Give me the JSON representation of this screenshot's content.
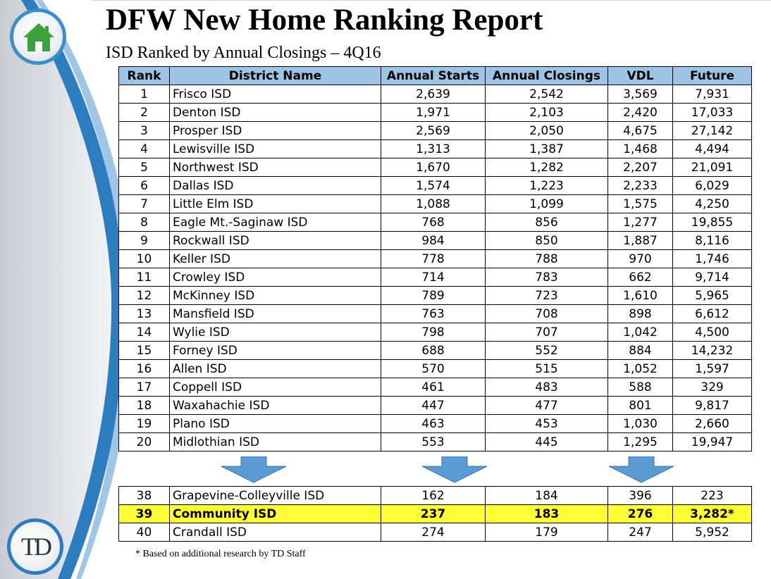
{
  "header": {
    "title": "DFW New Home Ranking Report",
    "subtitle": "ISD Ranked by Annual Closings – 4Q16"
  },
  "logo": {
    "bottom_text": "TD"
  },
  "icons": {
    "top": "house-icon",
    "bottom": "td-logo",
    "arrows": "down-arrow-icon"
  },
  "colors": {
    "header_fill": "#9dc3e6",
    "highlight_fill": "#ffff33",
    "accent_blue": "#2c7dc0",
    "house_green": "#3da13d"
  },
  "table": {
    "columns": [
      "Rank",
      "District Name",
      "Annual Starts",
      "Annual Closings",
      "VDL",
      "Future"
    ],
    "rows": [
      [
        "1",
        "Frisco ISD",
        "2,639",
        "2,542",
        "3,569",
        "7,931"
      ],
      [
        "2",
        "Denton ISD",
        "1,971",
        "2,103",
        "2,420",
        "17,033"
      ],
      [
        "3",
        "Prosper ISD",
        "2,569",
        "2,050",
        "4,675",
        "27,142"
      ],
      [
        "4",
        "Lewisville ISD",
        "1,313",
        "1,387",
        "1,468",
        "4,494"
      ],
      [
        "5",
        "Northwest ISD",
        "1,670",
        "1,282",
        "2,207",
        "21,091"
      ],
      [
        "6",
        "Dallas ISD",
        "1,574",
        "1,223",
        "2,233",
        "6,029"
      ],
      [
        "7",
        "Little Elm ISD",
        "1,088",
        "1,099",
        "1,575",
        "4,250"
      ],
      [
        "8",
        "Eagle Mt.-Saginaw ISD",
        "768",
        "856",
        "1,277",
        "19,855"
      ],
      [
        "9",
        "Rockwall ISD",
        "984",
        "850",
        "1,887",
        "8,116"
      ],
      [
        "10",
        "Keller ISD",
        "778",
        "788",
        "970",
        "1,746"
      ],
      [
        "11",
        "Crowley ISD",
        "714",
        "783",
        "662",
        "9,714"
      ],
      [
        "12",
        "McKinney ISD",
        "789",
        "723",
        "1,610",
        "5,965"
      ],
      [
        "13",
        "Mansfield ISD",
        "763",
        "708",
        "898",
        "6,612"
      ],
      [
        "14",
        "Wylie ISD",
        "798",
        "707",
        "1,042",
        "4,500"
      ],
      [
        "15",
        "Forney ISD",
        "688",
        "552",
        "884",
        "14,232"
      ],
      [
        "16",
        "Allen ISD",
        "570",
        "515",
        "1,052",
        "1,597"
      ],
      [
        "17",
        "Coppell ISD",
        "461",
        "483",
        "588",
        "329"
      ],
      [
        "18",
        "Waxahachie ISD",
        "447",
        "477",
        "801",
        "9,817"
      ],
      [
        "19",
        "Plano ISD",
        "463",
        "453",
        "1,030",
        "2,660"
      ],
      [
        "20",
        "Midlothian ISD",
        "553",
        "445",
        "1,295",
        "19,947"
      ]
    ],
    "bottom_rows": [
      [
        "38",
        "Grapevine-Colleyville ISD",
        "162",
        "184",
        "396",
        "223"
      ],
      [
        "39",
        "Community ISD",
        "237",
        "183",
        "276",
        "3,282*"
      ],
      [
        "40",
        "Crandall ISD",
        "274",
        "179",
        "247",
        "5,952"
      ]
    ],
    "highlighted_rank": "39"
  },
  "footnote": "* Based on additional research by TD Staff"
}
